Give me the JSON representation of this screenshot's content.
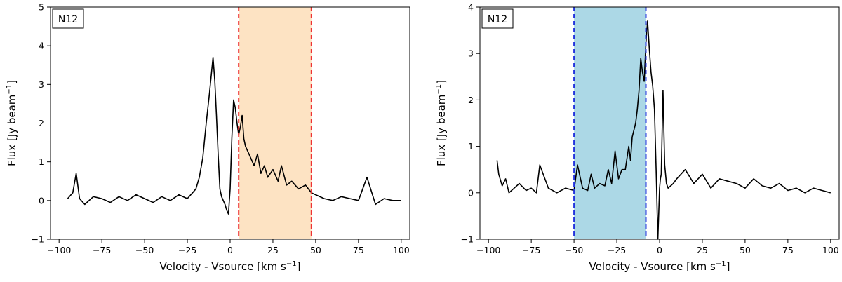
{
  "chart_data": [
    {
      "type": "line",
      "panel_label": "N12",
      "xlabel": "Velocity - Vsource [km s",
      "xlabel_sup": "−1",
      "xlabel_end": "]",
      "ylabel": "Flux [Jy beam",
      "ylabel_sup": "−1",
      "ylabel_end": "]",
      "xlim": [
        -105,
        105
      ],
      "ylim": [
        -1,
        5
      ],
      "x_ticks": [
        -100,
        -75,
        -50,
        -25,
        0,
        25,
        50,
        75,
        100
      ],
      "x_tick_labels": [
        "−100",
        "−75",
        "−50",
        "−25",
        "0",
        "25",
        "50",
        "75",
        "100"
      ],
      "y_ticks": [
        -1,
        0,
        1,
        2,
        3,
        4,
        5
      ],
      "y_tick_labels": [
        "−1",
        "0",
        "1",
        "2",
        "3",
        "4",
        "5"
      ],
      "band": {
        "x0": 5,
        "x1": 47.5,
        "fill": "#fde3c3",
        "line_color": "#ee3333"
      },
      "line_color": "#000000",
      "series": [
        {
          "x": [
            -95,
            -92,
            -90,
            -88,
            -85,
            -80,
            -75,
            -70,
            -65,
            -60,
            -55,
            -50,
            -45,
            -40,
            -35,
            -30,
            -25,
            -22,
            -20,
            -18,
            -16,
            -14,
            -12,
            -10,
            -9,
            -8,
            -7,
            -6,
            -5,
            -4,
            -3,
            -2,
            -1,
            0,
            1,
            2,
            3,
            4,
            5,
            6,
            7,
            8,
            9,
            10,
            12,
            14,
            16,
            18,
            20,
            22,
            25,
            28,
            30,
            33,
            36,
            40,
            44,
            47.5,
            50,
            55,
            60,
            65,
            70,
            75,
            80,
            85,
            90,
            95,
            100
          ],
          "y": [
            0.05,
            0.2,
            0.7,
            0.05,
            -0.1,
            0.1,
            0.05,
            -0.05,
            0.1,
            0.0,
            0.15,
            0.05,
            -0.05,
            0.1,
            0.0,
            0.15,
            0.05,
            0.2,
            0.3,
            0.6,
            1.1,
            2.0,
            2.8,
            3.7,
            3.1,
            2.2,
            1.2,
            0.3,
            0.1,
            0.0,
            -0.1,
            -0.25,
            -0.35,
            0.3,
            1.6,
            2.6,
            2.4,
            2.0,
            1.7,
            1.9,
            2.2,
            1.6,
            1.4,
            1.3,
            1.1,
            0.9,
            1.2,
            0.7,
            0.9,
            0.6,
            0.8,
            0.5,
            0.9,
            0.4,
            0.5,
            0.3,
            0.4,
            0.2,
            0.15,
            0.05,
            0.0,
            0.1,
            0.05,
            0.0,
            0.6,
            -0.1,
            0.05,
            0.0,
            0.0
          ]
        }
      ]
    },
    {
      "type": "line",
      "panel_label": "N12",
      "xlabel": "Velocity - Vsource [km s",
      "xlabel_sup": "−1",
      "xlabel_end": "]",
      "ylabel": "Flux [Jy beam",
      "ylabel_sup": "−1",
      "ylabel_end": "]",
      "xlim": [
        -105,
        105
      ],
      "ylim": [
        -1,
        4
      ],
      "x_ticks": [
        -100,
        -75,
        -50,
        -25,
        0,
        25,
        50,
        75,
        100
      ],
      "x_tick_labels": [
        "−100",
        "−75",
        "−50",
        "−25",
        "0",
        "25",
        "50",
        "75",
        "100"
      ],
      "y_ticks": [
        -1,
        0,
        1,
        2,
        3,
        4
      ],
      "y_tick_labels": [
        "−1",
        "0",
        "1",
        "2",
        "3",
        "4"
      ],
      "band": {
        "x0": -50,
        "x1": -8,
        "fill": "#acd8e6",
        "line_color": "#2233dd"
      },
      "line_color": "#000000",
      "series": [
        {
          "x": [
            -95,
            -94,
            -92,
            -90,
            -88,
            -85,
            -82,
            -78,
            -75,
            -72,
            -70,
            -65,
            -60,
            -55,
            -50,
            -48,
            -45,
            -42,
            -40,
            -38,
            -35,
            -32,
            -30,
            -28,
            -26,
            -24,
            -22,
            -20,
            -18,
            -17,
            -16,
            -14,
            -13,
            -12,
            -11,
            -10,
            -9,
            -8,
            -7,
            -6,
            -5,
            -4,
            -3,
            -2,
            -1,
            0,
            0.5,
            1,
            2,
            3,
            4,
            5,
            8,
            10,
            15,
            20,
            25,
            30,
            35,
            40,
            45,
            50,
            55,
            60,
            65,
            70,
            75,
            80,
            85,
            90,
            95,
            100
          ],
          "y": [
            0.7,
            0.4,
            0.15,
            0.3,
            0.0,
            0.1,
            0.2,
            0.05,
            0.1,
            0.0,
            0.6,
            0.1,
            0.0,
            0.1,
            0.05,
            0.6,
            0.1,
            0.05,
            0.4,
            0.1,
            0.2,
            0.15,
            0.5,
            0.2,
            0.9,
            0.3,
            0.5,
            0.5,
            1.0,
            0.7,
            1.2,
            1.5,
            1.8,
            2.2,
            2.9,
            2.6,
            2.4,
            3.2,
            3.7,
            3.1,
            2.6,
            2.3,
            1.8,
            0.5,
            -1.0,
            0.1,
            0.3,
            0.4,
            2.2,
            0.6,
            0.2,
            0.1,
            0.2,
            0.3,
            0.5,
            0.2,
            0.4,
            0.1,
            0.3,
            0.25,
            0.2,
            0.1,
            0.3,
            0.15,
            0.1,
            0.2,
            0.05,
            0.1,
            0.0,
            0.1,
            0.05,
            0.0
          ]
        }
      ]
    }
  ]
}
